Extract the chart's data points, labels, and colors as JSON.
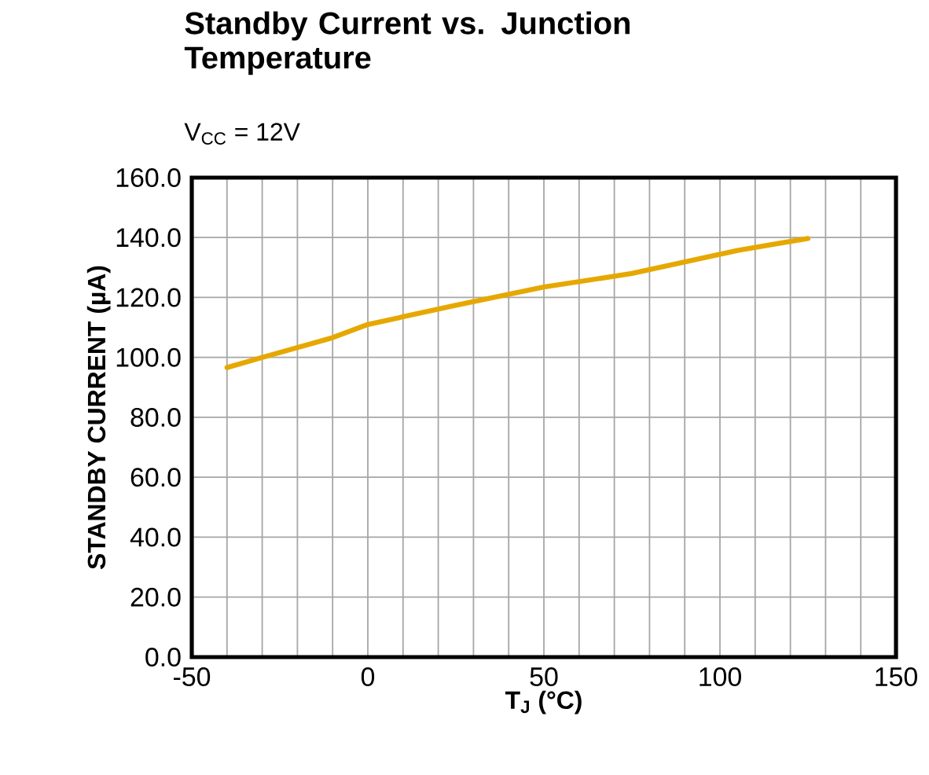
{
  "chart_data": {
    "type": "line",
    "title": "Standby Current vs. Junction Temperature",
    "subtitle": "V$_{CC}$ = 12V",
    "xlabel": "T$_{J}$ (°C)",
    "ylabel": "STANDBY CURRENT (µA)",
    "x": [
      -40,
      -30,
      -10,
      0,
      25,
      50,
      75,
      85,
      105,
      125
    ],
    "series": [
      {
        "color": "#e6a800",
        "values": [
          96.6,
          100.0,
          106.6,
          111.0,
          117.4,
          123.5,
          128.0,
          130.6,
          135.7,
          139.7
        ]
      }
    ],
    "xlim": [
      -50,
      150
    ],
    "xticks": [
      -50,
      {
        "value": -40,
        "label": null
      },
      {
        "value": -30,
        "label": null
      },
      {
        "value": -20,
        "label": null
      },
      {
        "value": -10,
        "label": null
      },
      0,
      {
        "value": 10,
        "label": null
      },
      {
        "value": 20,
        "label": null
      },
      {
        "value": 30,
        "label": null
      },
      {
        "value": 40,
        "label": null
      },
      50,
      {
        "value": 60,
        "label": null
      },
      {
        "value": 70,
        "label": null
      },
      {
        "value": 80,
        "label": null
      },
      {
        "value": 90,
        "label": null
      },
      100,
      {
        "value": 110,
        "label": null
      },
      {
        "value": 120,
        "label": null
      },
      {
        "value": 130,
        "label": null
      },
      {
        "value": 140,
        "label": null
      },
      150
    ],
    "ylim": [
      0,
      160
    ],
    "yticks": [
      {
        "value": 0,
        "label": "0.0"
      },
      {
        "value": 20,
        "label": "20.0"
      },
      {
        "value": 40,
        "label": "40.0"
      },
      {
        "value": 60,
        "label": "60.0"
      },
      {
        "value": 80,
        "label": "80.0"
      },
      {
        "value": 100,
        "label": "100.0"
      },
      {
        "value": 120,
        "label": "120.0"
      },
      {
        "value": 140,
        "label": "140.0"
      },
      {
        "value": 160,
        "label": "160.0"
      }
    ],
    "grid": true,
    "marker": "none",
    "line_style": "solid"
  }
}
